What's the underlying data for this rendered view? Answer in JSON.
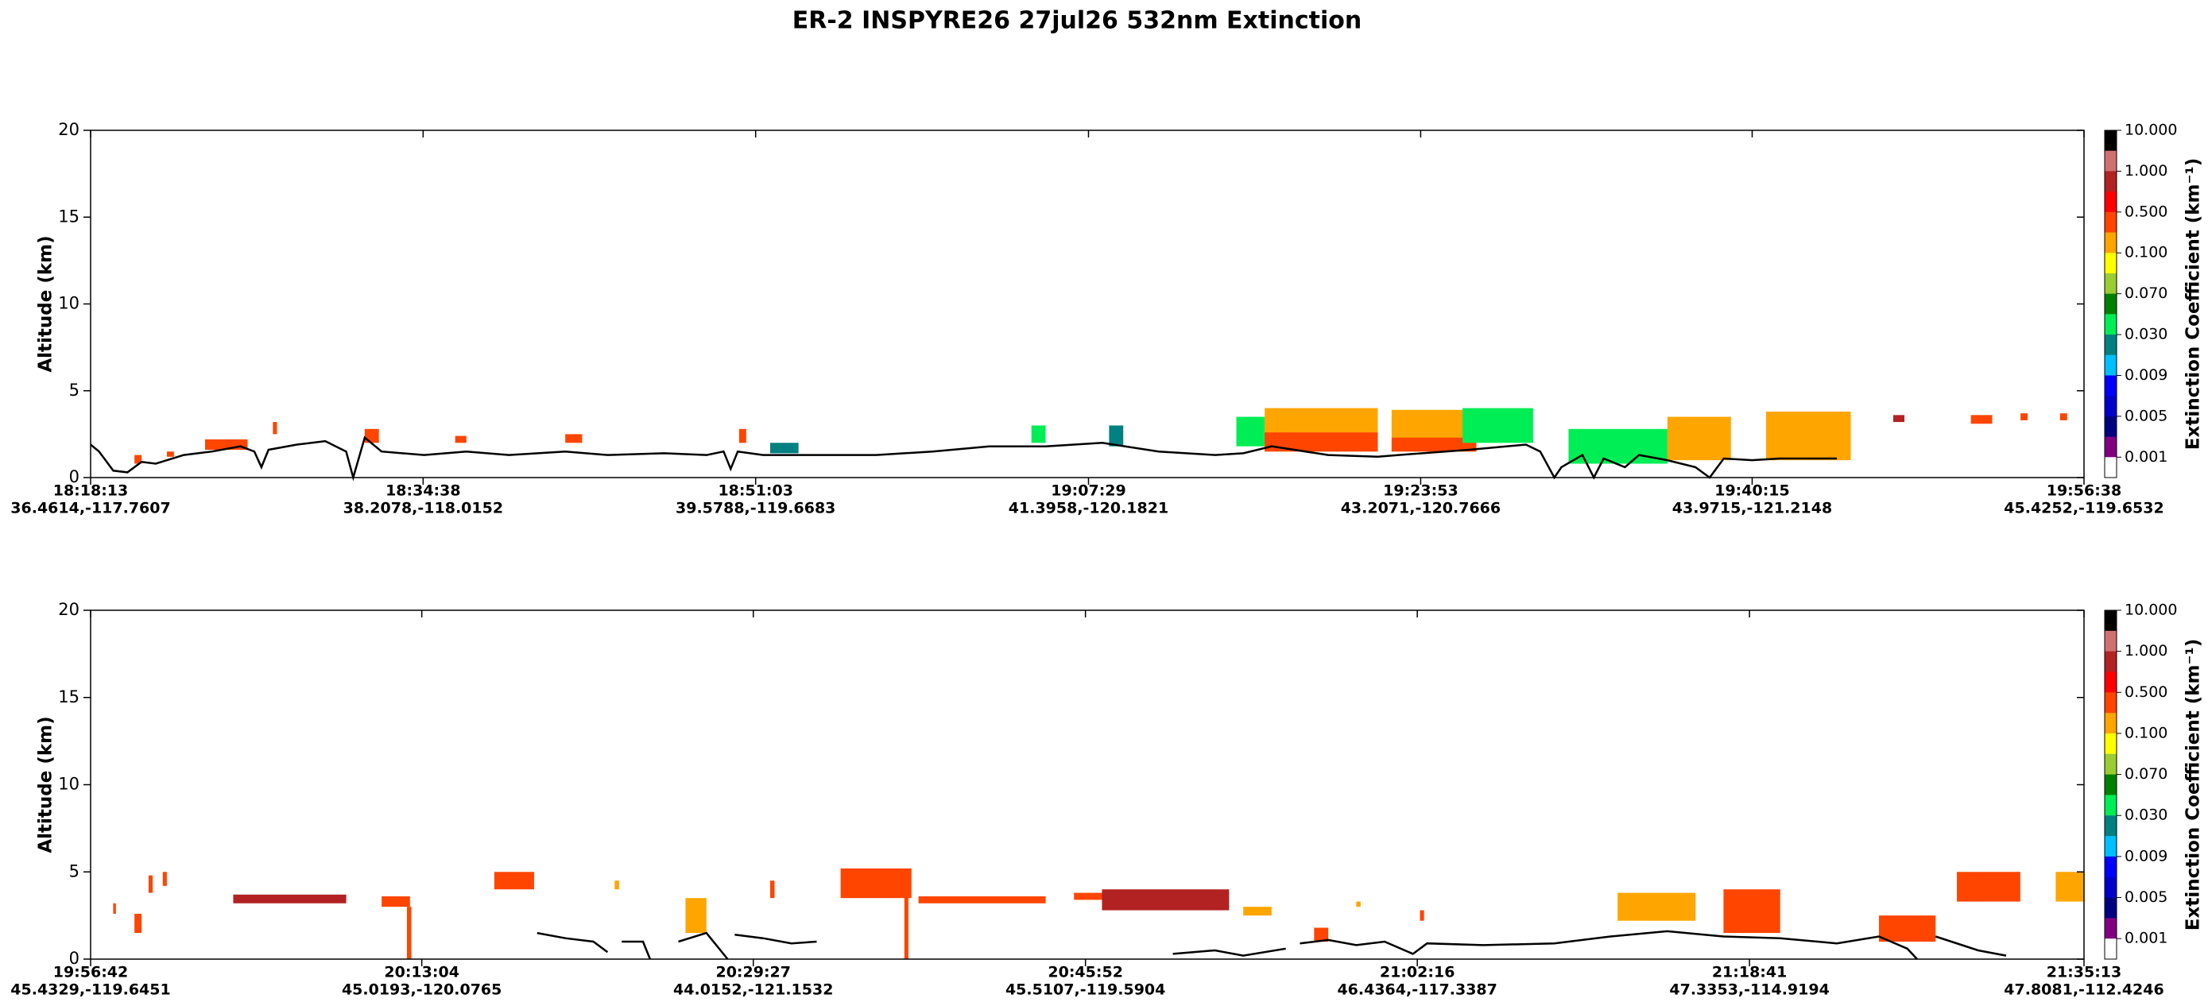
{
  "title": "ER-2  INSPYRE26  27jul26  532nm Extinction",
  "chart_data": [
    {
      "type": "curtain",
      "y_label": "Altitude (km)",
      "xlim": [
        65893,
        71798
      ],
      "ylim": [
        0,
        20
      ],
      "yticks": [
        0,
        5,
        10,
        15,
        20
      ],
      "xticks": [
        {
          "value": 65893,
          "label": "18:18:13",
          "location": "36.4614,-117.7607"
        },
        {
          "value": 66878,
          "label": "18:34:38",
          "location": "38.2078,-118.0152"
        },
        {
          "value": 67863,
          "label": "18:51:03",
          "location": "39.5788,-119.6683"
        },
        {
          "value": 68849,
          "label": "19:07:29",
          "location": "41.3958,-120.1821"
        },
        {
          "value": 69833,
          "label": "19:23:53",
          "location": "43.2071,-120.7666"
        },
        {
          "value": 70815,
          "label": "19:40:15",
          "location": "43.9715,-121.2148"
        },
        {
          "value": 71798,
          "label": "19:56:38",
          "location": "45.4252,-119.6532"
        }
      ],
      "surface": {
        "color": "#000000",
        "x": [
          65893,
          65918,
          65960,
          66002,
          66044,
          66086,
          66169,
          66253,
          66337,
          66378,
          66399,
          66420,
          66504,
          66588,
          66650,
          66671,
          66705,
          66755,
          66881,
          67006,
          67132,
          67299,
          67425,
          67592,
          67718,
          67768,
          67789,
          67810,
          67885,
          68052,
          68220,
          68387,
          68555,
          68722,
          68890,
          69057,
          69224,
          69308,
          69392,
          69559,
          69706,
          69768,
          69977,
          70145,
          70187,
          70229,
          70250,
          70312,
          70346,
          70375,
          70438,
          70480,
          70563,
          70647,
          70689,
          70731,
          70815,
          70898,
          70982,
          71066
        ],
        "y": [
          1.9,
          1.5,
          0.4,
          0.3,
          0.9,
          0.8,
          1.3,
          1.5,
          1.8,
          1.5,
          0.6,
          1.6,
          1.9,
          2.1,
          1.5,
          0,
          2.3,
          1.5,
          1.3,
          1.5,
          1.3,
          1.5,
          1.3,
          1.4,
          1.3,
          1.5,
          0.5,
          1.5,
          1.3,
          1.3,
          1.3,
          1.5,
          1.8,
          1.8,
          2.0,
          1.5,
          1.3,
          1.4,
          1.8,
          1.3,
          1.2,
          1.3,
          1.6,
          1.9,
          1.5,
          0,
          0.6,
          1.3,
          0,
          1.1,
          0.6,
          1.3,
          1.0,
          0.6,
          0,
          1.1,
          1.0,
          1.1,
          1.1,
          1.1
        ]
      },
      "cells": [
        [
          66023,
          66044,
          0.8,
          1.3,
          0.5
        ],
        [
          66119,
          66140,
          1.2,
          1.5,
          0.5
        ],
        [
          66232,
          66358,
          1.6,
          2.2,
          0.5
        ],
        [
          66433,
          66445,
          2.5,
          3.2,
          0.5
        ],
        [
          66705,
          66747,
          2.0,
          2.8,
          0.5
        ],
        [
          66973,
          67006,
          2.0,
          2.4,
          0.5
        ],
        [
          67299,
          67349,
          2.0,
          2.5,
          0.5
        ],
        [
          67814,
          67835,
          2.0,
          2.8,
          0.5
        ],
        [
          67906,
          67990,
          1.4,
          2.0,
          0.03
        ],
        [
          68680,
          68722,
          2.0,
          3.0,
          0.04
        ],
        [
          68910,
          68952,
          1.8,
          3.0,
          0.03
        ],
        [
          69287,
          69371,
          1.8,
          3.5,
          0.04
        ],
        [
          69371,
          69706,
          1.5,
          4.0,
          0.2
        ],
        [
          69371,
          69706,
          1.5,
          2.6,
          0.5
        ],
        [
          69747,
          69998,
          1.5,
          3.9,
          0.2
        ],
        [
          69747,
          69998,
          1.5,
          2.3,
          0.5
        ],
        [
          69957,
          70166,
          2.0,
          4.0,
          0.04
        ],
        [
          70271,
          70564,
          0.8,
          2.8,
          0.04
        ],
        [
          70564,
          70752,
          1.0,
          3.5,
          0.2
        ],
        [
          70856,
          71107,
          1.0,
          3.8,
          0.2
        ],
        [
          71233,
          71266,
          3.2,
          3.6,
          1
        ],
        [
          71463,
          71526,
          3.1,
          3.6,
          0.5
        ],
        [
          71610,
          71631,
          3.3,
          3.7,
          0.5
        ],
        [
          71727,
          71748,
          3.3,
          3.7,
          0.5
        ]
      ],
      "colorbar": {
        "label": "Extinction Coefficient (km⁻¹)",
        "colors": [
          "#000000",
          "#d07070",
          "#b22222",
          "#ff0000",
          "#ff4500",
          "#ffa500",
          "#ffff00",
          "#9acd32",
          "#008000",
          "#00ee55",
          "#008080",
          "#00bfff",
          "#0000ff",
          "#0000cd",
          "#000080",
          "#800080",
          "#ffffff"
        ],
        "ticks": [
          {
            "value": 10,
            "label": "10.000"
          },
          {
            "value": 1,
            "label": "1.000"
          },
          {
            "value": 0.5,
            "label": "0.500"
          },
          {
            "value": 0.1,
            "label": "0.100"
          },
          {
            "value": 0.07,
            "label": "0.070"
          },
          {
            "value": 0.03,
            "label": "0.030"
          },
          {
            "value": 0.009,
            "label": "0.009"
          },
          {
            "value": 0.005,
            "label": "0.005"
          },
          {
            "value": 0.001,
            "label": "0.001"
          }
        ]
      }
    },
    {
      "type": "curtain",
      "y_label": "Altitude (km)",
      "xlim": [
        71802,
        77713
      ],
      "ylim": [
        0,
        20
      ],
      "yticks": [
        0,
        5,
        10,
        15,
        20
      ],
      "xticks": [
        {
          "value": 71802,
          "label": "19:56:42",
          "location": "45.4329,-119.6451"
        },
        {
          "value": 72784,
          "label": "20:13:04",
          "location": "45.0193,-120.0765"
        },
        {
          "value": 73767,
          "label": "20:29:27",
          "location": "44.0152,-121.1532"
        },
        {
          "value": 74752,
          "label": "20:45:52",
          "location": "45.5107,-119.5904"
        },
        {
          "value": 75736,
          "label": "21:02:16",
          "location": "46.4364,-117.3387"
        },
        {
          "value": 76721,
          "label": "21:18:41",
          "location": "47.3353,-114.9194"
        },
        {
          "value": 77713,
          "label": "21:35:13",
          "location": "47.8081,-112.4246"
        }
      ],
      "surface": {
        "color": "#000000",
        "x": [
          73126,
          73210,
          73293,
          73335,
          73356,
          73377,
          73440,
          73461,
          73500,
          73545,
          73628,
          73691,
          73700,
          73712,
          73796,
          73880,
          73955,
          74500,
          75011,
          75136,
          75220,
          75346,
          75370,
          75388,
          75472,
          75555,
          75639,
          75723,
          75765,
          75932,
          76142,
          76309,
          76477,
          76644,
          76812,
          76980,
          77105,
          77189,
          77218,
          77245,
          77273,
          77399,
          77482
        ],
        "y": [
          1.5,
          1.2,
          1.0,
          0.4,
          null,
          1.0,
          1.0,
          0,
          null,
          1.0,
          1.5,
          0,
          null,
          1.4,
          1.2,
          0.9,
          1.0,
          null,
          0.3,
          0.5,
          0.2,
          0.6,
          null,
          0.9,
          1.1,
          0.8,
          1.0,
          0.3,
          0.9,
          0.8,
          0.9,
          1.3,
          1.6,
          1.3,
          1.2,
          0.9,
          1.3,
          0.6,
          0,
          null,
          1.3,
          0.5,
          0.2
        ]
      },
      "cells": [
        [
          71869,
          71877,
          2.6,
          3.2,
          0.5
        ],
        [
          71932,
          71953,
          1.5,
          2.6,
          0.5
        ],
        [
          71974,
          71986,
          3.8,
          4.8,
          0.5
        ],
        [
          72016,
          72028,
          4.2,
          5.0,
          0.5
        ],
        [
          72225,
          72560,
          3.2,
          3.7,
          1
        ],
        [
          72665,
          72749,
          3.0,
          3.6,
          0.5
        ],
        [
          72740,
          72753,
          0,
          3.0,
          0.5
        ],
        [
          72999,
          73117,
          4.0,
          5.0,
          0.5
        ],
        [
          73356,
          73369,
          4.0,
          4.5,
          0.2
        ],
        [
          73566,
          73628,
          1.5,
          3.5,
          0.2
        ],
        [
          73817,
          73830,
          3.5,
          4.5,
          0.5
        ],
        [
          74026,
          74236,
          3.5,
          5.2,
          0.5
        ],
        [
          74215,
          74227,
          0,
          4.5,
          0.5
        ],
        [
          74257,
          74634,
          3.2,
          3.6,
          0.5
        ],
        [
          74718,
          74885,
          3.4,
          3.8,
          0.5
        ],
        [
          74801,
          75178,
          2.8,
          4.0,
          1
        ],
        [
          75220,
          75304,
          2.5,
          3.0,
          0.2
        ],
        [
          75430,
          75472,
          1.0,
          1.8,
          0.5
        ],
        [
          75555,
          75568,
          3.0,
          3.3,
          0.2
        ],
        [
          75744,
          75756,
          2.2,
          2.8,
          0.5
        ],
        [
          76330,
          76561,
          2.2,
          3.8,
          0.2
        ],
        [
          76644,
          76812,
          1.5,
          4.0,
          0.5
        ],
        [
          77105,
          77273,
          1.0,
          2.5,
          0.5
        ],
        [
          77336,
          77524,
          3.3,
          5.0,
          0.5
        ],
        [
          77629,
          77713,
          3.3,
          5.0,
          0.2
        ]
      ],
      "colorbar": {
        "label": "Extinction Coefficient (km⁻¹)",
        "colors": [
          "#000000",
          "#d07070",
          "#b22222",
          "#ff0000",
          "#ff4500",
          "#ffa500",
          "#ffff00",
          "#9acd32",
          "#008000",
          "#00ee55",
          "#008080",
          "#00bfff",
          "#0000ff",
          "#0000cd",
          "#000080",
          "#800080",
          "#ffffff"
        ],
        "ticks": [
          {
            "value": 10,
            "label": "10.000"
          },
          {
            "value": 1,
            "label": "1.000"
          },
          {
            "value": 0.5,
            "label": "0.500"
          },
          {
            "value": 0.1,
            "label": "0.100"
          },
          {
            "value": 0.07,
            "label": "0.070"
          },
          {
            "value": 0.03,
            "label": "0.030"
          },
          {
            "value": 0.009,
            "label": "0.009"
          },
          {
            "value": 0.005,
            "label": "0.005"
          },
          {
            "value": 0.001,
            "label": "0.001"
          }
        ]
      }
    }
  ]
}
